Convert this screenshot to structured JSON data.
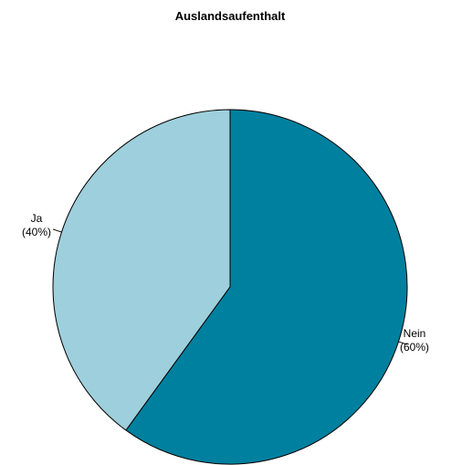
{
  "chart_data": {
    "type": "pie",
    "title": "Auslandsaufenthalt",
    "categories": [
      "Nein",
      "Ja"
    ],
    "values": [
      60,
      40
    ],
    "value_labels": [
      "(60%)",
      "(40%)"
    ],
    "colors": [
      "#00809f",
      "#9ecfdc"
    ]
  }
}
